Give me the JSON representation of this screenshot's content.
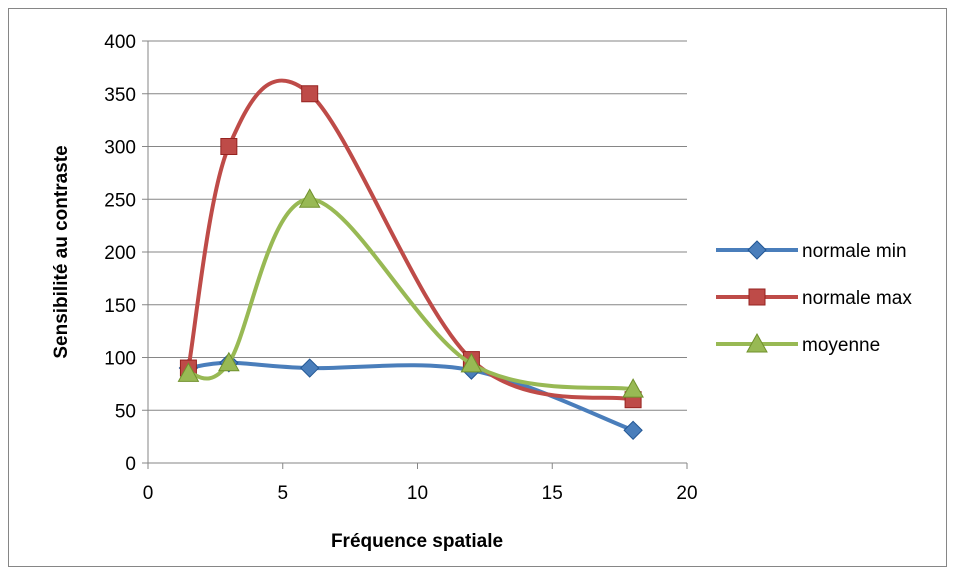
{
  "chart_data": {
    "type": "line",
    "smooth": true,
    "title": "",
    "xlabel": "Fréquence spatiale",
    "ylabel": "Sensibilité au contraste",
    "xlim": [
      0,
      20
    ],
    "ylim": [
      0,
      400
    ],
    "x_ticks": [
      0,
      5,
      10,
      15,
      20
    ],
    "y_ticks": [
      0,
      50,
      100,
      150,
      200,
      250,
      300,
      350,
      400
    ],
    "grid": "horizontal",
    "legend_position": "right",
    "series": [
      {
        "name": "normale min",
        "color": "#4a7ebb",
        "marker": "diamond",
        "points": [
          [
            1.5,
            90
          ],
          [
            3,
            95
          ],
          [
            6,
            90
          ],
          [
            12,
            88
          ],
          [
            18,
            31
          ]
        ]
      },
      {
        "name": "normale max",
        "color": "#be4b48",
        "marker": "square",
        "points": [
          [
            1.5,
            90
          ],
          [
            3,
            300
          ],
          [
            6,
            350
          ],
          [
            12,
            98
          ],
          [
            18,
            60
          ]
        ]
      },
      {
        "name": "moyenne",
        "color": "#98b954",
        "marker": "triangle",
        "points": [
          [
            1.5,
            85
          ],
          [
            3,
            95
          ],
          [
            6,
            250
          ],
          [
            12,
            94
          ],
          [
            18,
            70
          ]
        ]
      }
    ]
  }
}
